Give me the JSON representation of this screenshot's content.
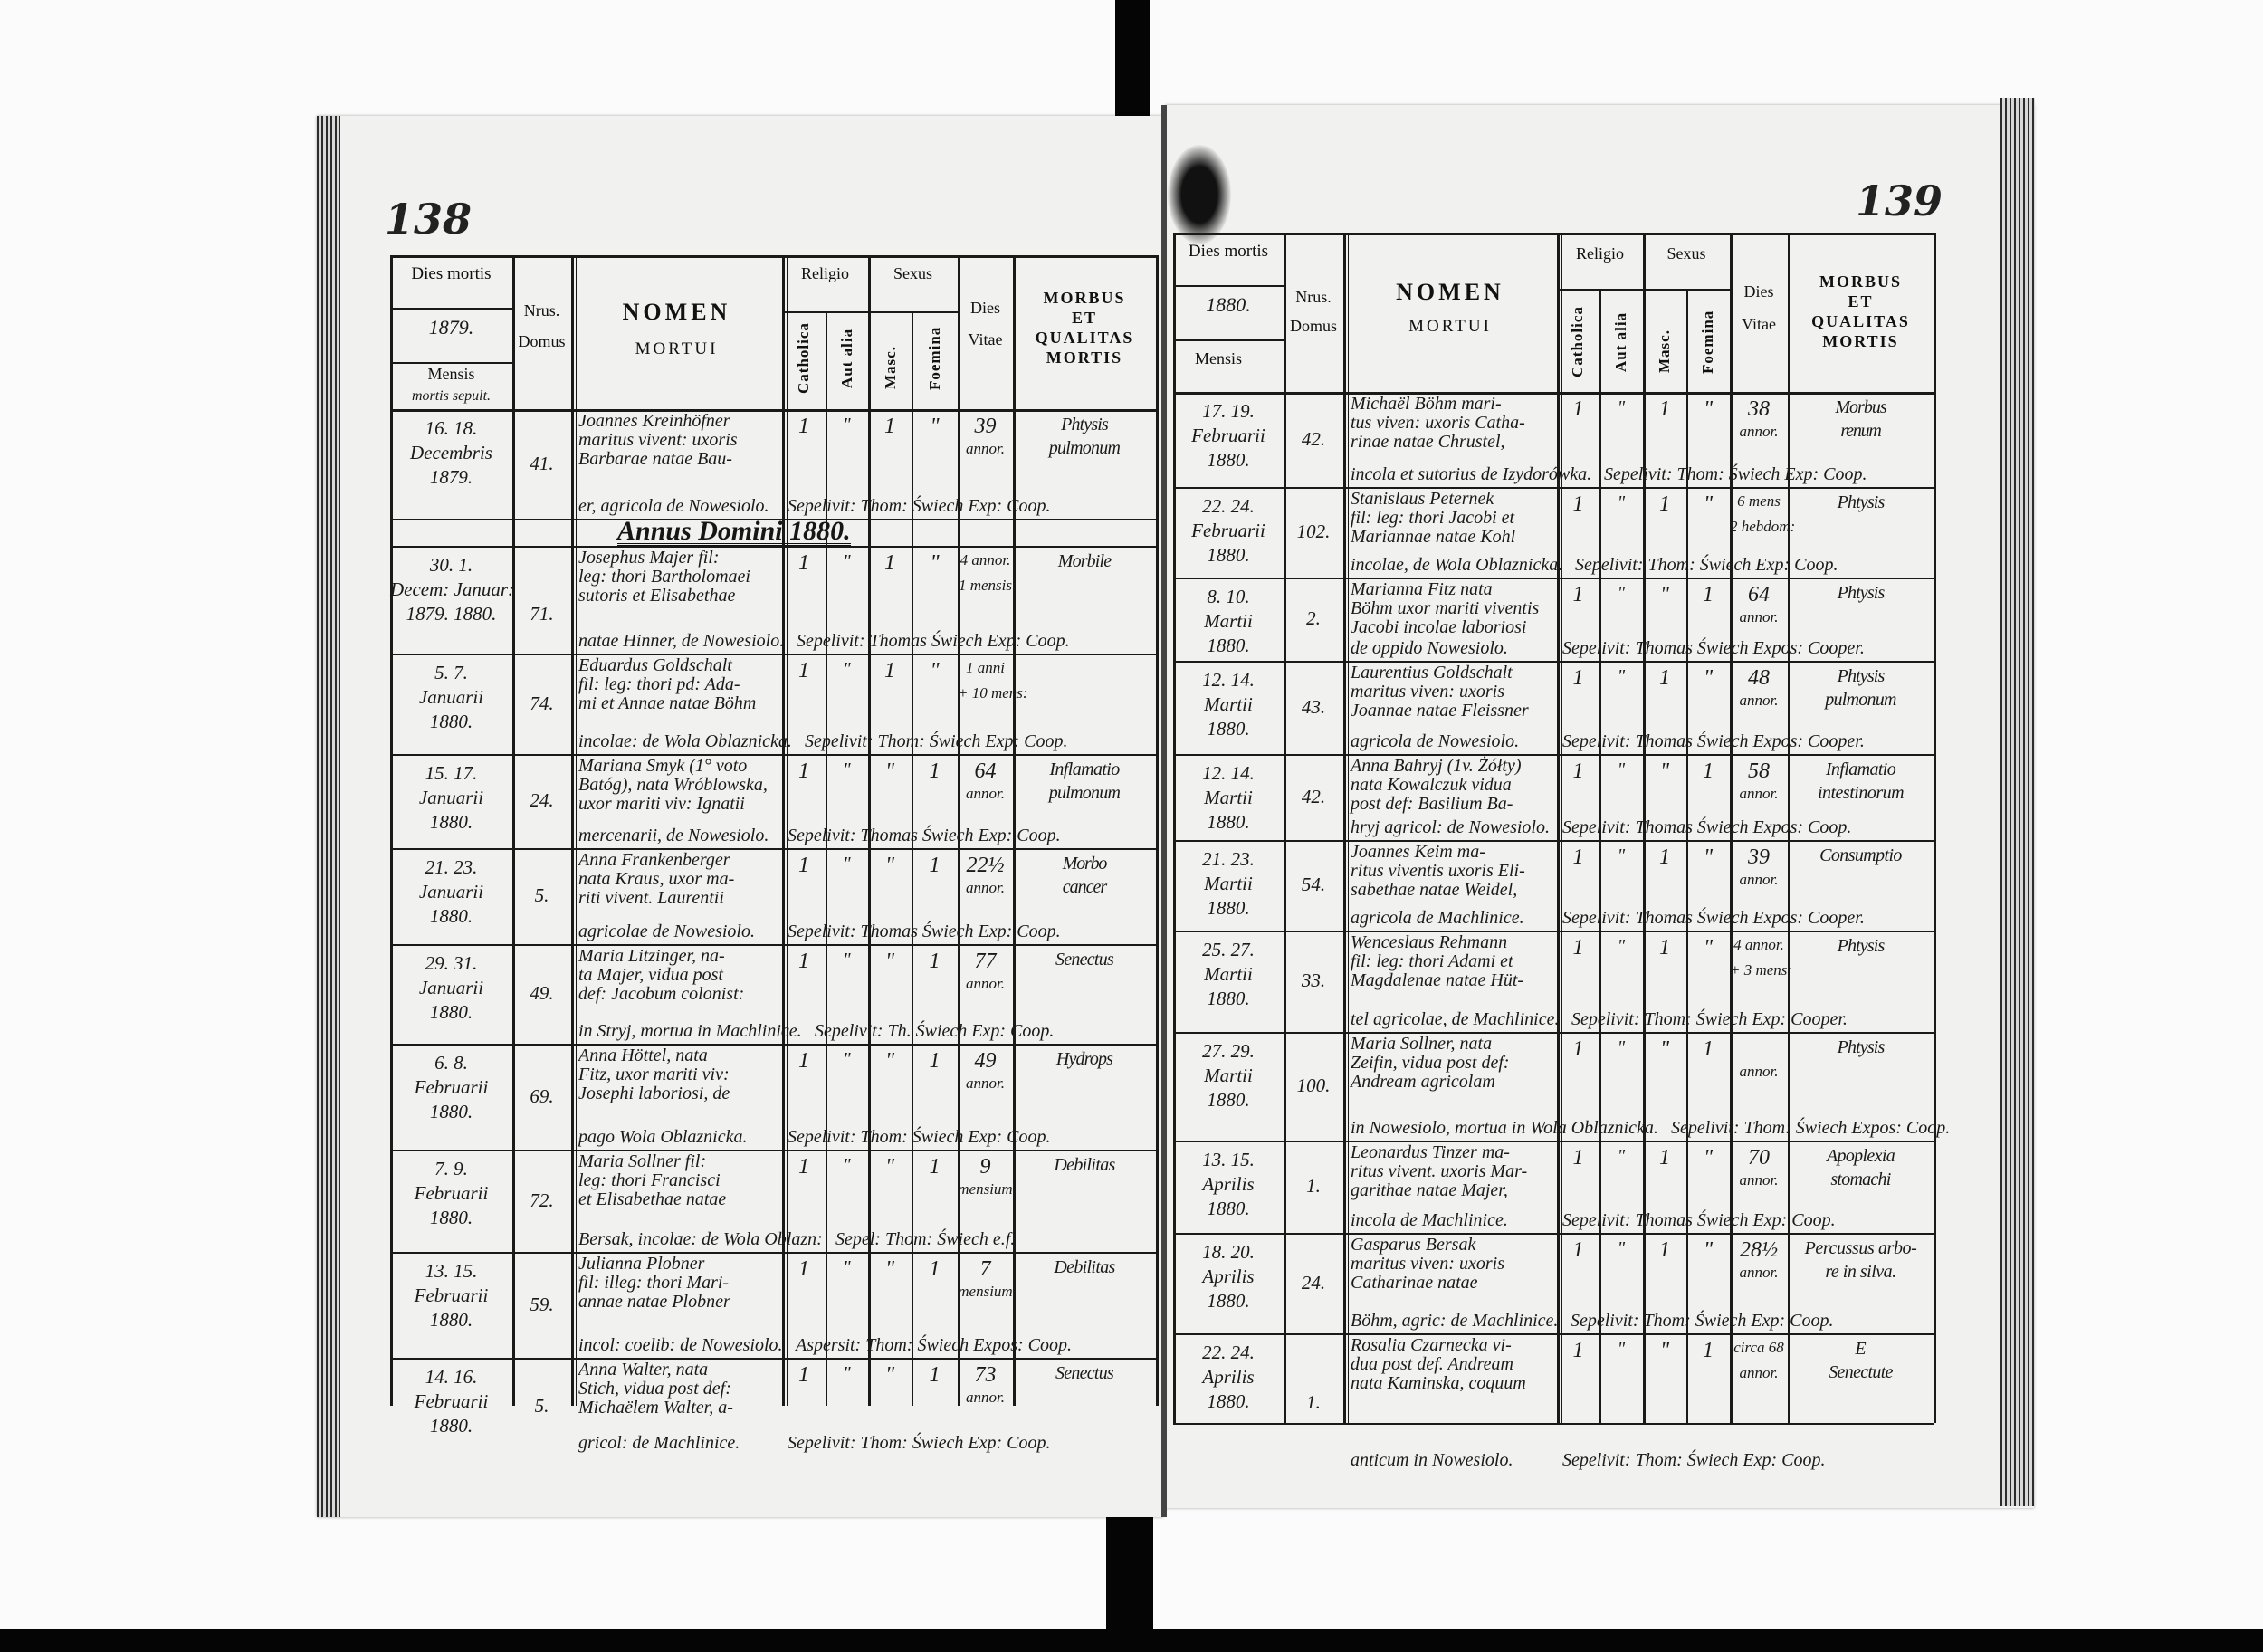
{
  "colors": {
    "ink": "#1a1a1a",
    "paper": "#f1f1ef",
    "scan_border": "#050505"
  },
  "left_page": {
    "page_number": "138",
    "header": {
      "dies_mortis": "Dies mortis",
      "year": "1879.",
      "mensis": "Mensis",
      "mensis_note": "mortis sepult.",
      "nrus": "Nrus.",
      "domus": "Domus",
      "nomen": "NOMEN",
      "mortui": "MORTUI",
      "religio": "Religio",
      "catholica": "Catholica",
      "aut_alia": "Aut alia",
      "sexus": "Sexus",
      "masc": "Masc.",
      "foemina": "Foemina",
      "dies": "Dies",
      "vitae": "Vitae",
      "morbus": [
        "MORBUS",
        "ET",
        "QUALITAS",
        "MORTIS"
      ]
    },
    "year_heading": "Annus Domini 1880.",
    "rows": [
      {
        "date": [
          "16.   18.",
          "Decembris",
          "1879."
        ],
        "domus": "41.",
        "nomen": [
          "Joannes Kreinhöfner",
          "maritus vivent: uxoris",
          "Barbarae natae Bau-",
          "er, agricola de Nowesiolo."
        ],
        "religio": [
          "1",
          "\""
        ],
        "sexus": [
          "1",
          "\""
        ],
        "age": [
          "39",
          "annor."
        ],
        "morbus": [
          "Phtysis",
          "pulmonum"
        ],
        "burial": "Sepelivit: Thom: Świech Exp: Coop."
      },
      {
        "date": [
          "30.     1.",
          "Decem: Januar:",
          "1879.  1880."
        ],
        "domus": "71.",
        "nomen": [
          "Josephus Majer fil:",
          "leg: thori Bartholomaei",
          "sutoris et Elisabethae",
          "natae Hinner, de Nowesiolo."
        ],
        "religio": [
          "1",
          "\""
        ],
        "sexus": [
          "1",
          "\""
        ],
        "age": [
          "4 annor.",
          "1 mensis"
        ],
        "morbus": [
          "Morbile"
        ],
        "burial": "Sepelivit: Thomas Świech Exp: Coop."
      },
      {
        "date": [
          "5.    7.",
          "Januarii",
          "1880."
        ],
        "domus": "74.",
        "nomen": [
          "Eduardus Goldschalt",
          "fil: leg: thori pd: Ada-",
          "mi et Annae natae Böhm",
          "incolae: de Wola Oblaznicka."
        ],
        "religio": [
          "1",
          "\""
        ],
        "sexus": [
          "1",
          "\""
        ],
        "age": [
          "1 anni",
          "+ 10 mens:"
        ],
        "morbus": [],
        "burial": "Sepelivit: Thom: Świech Exp: Coop."
      },
      {
        "date": [
          "15.   17.",
          "Januarii",
          "1880."
        ],
        "domus": "24.",
        "nomen": [
          "Mariana Smyk (1° voto",
          "Batóg), nata Wróblowska,",
          "uxor mariti viv: Ignatii",
          "mercenarii, de Nowesiolo."
        ],
        "religio": [
          "1",
          "\""
        ],
        "sexus": [
          "\"",
          "1"
        ],
        "age": [
          "64",
          "annor."
        ],
        "morbus": [
          "Inflamatio",
          "pulmonum"
        ],
        "burial": "Sepelivit: Thomas Świech Exp: Coop."
      },
      {
        "date": [
          "21.   23.",
          "Januarii",
          "1880."
        ],
        "domus": "5.",
        "nomen": [
          "Anna Frankenberger",
          "nata Kraus, uxor ma-",
          "riti vivent. Laurentii",
          "agricolae de Nowesiolo."
        ],
        "religio": [
          "1",
          "\""
        ],
        "sexus": [
          "\"",
          "1"
        ],
        "age": [
          "22½",
          "annor."
        ],
        "morbus": [
          "Morbo",
          "cancer"
        ],
        "burial": "Sepelivit: Thomas Świech Exp: Coop."
      },
      {
        "date": [
          "29.   31.",
          "Januarii",
          "1880."
        ],
        "domus": "49.",
        "nomen": [
          "Maria Litzinger, na-",
          "ta Majer, vidua post",
          "def: Jacobum colonist:",
          "in Stryj, mortua in Machlinice."
        ],
        "religio": [
          "1",
          "\""
        ],
        "sexus": [
          "\"",
          "1"
        ],
        "age": [
          "77",
          "annor."
        ],
        "morbus": [
          "Senectus"
        ],
        "burial": "Sepelivit: Th. Świech Exp: Coop."
      },
      {
        "date": [
          "6.    8.",
          "Februarii",
          "1880."
        ],
        "domus": "69.",
        "nomen": [
          "Anna Höttel, nata",
          "Fitz, uxor mariti viv:",
          "Josephi laboriosi, de",
          "pago Wola Oblaznicka."
        ],
        "religio": [
          "1",
          "\""
        ],
        "sexus": [
          "\"",
          "1"
        ],
        "age": [
          "49",
          "annor."
        ],
        "morbus": [
          "Hydrops"
        ],
        "burial": "Sepelivit: Thom: Świech Exp: Coop."
      },
      {
        "date": [
          "7.    9.",
          "Februarii",
          "1880."
        ],
        "domus": "72.",
        "nomen": [
          "Maria Sollner fil:",
          "leg: thori Francisci",
          "et Elisabethae natae",
          "Bersak, incolae: de Wola Oblazn:"
        ],
        "religio": [
          "1",
          "\""
        ],
        "sexus": [
          "\"",
          "1"
        ],
        "age": [
          "9",
          "mensium"
        ],
        "morbus": [
          "Debilitas"
        ],
        "burial": "Sepel: Thom: Świech e.f."
      },
      {
        "date": [
          "13.   15.",
          "Februarii",
          "1880."
        ],
        "domus": "59.",
        "nomen": [
          "Julianna Plobner",
          "fil: illeg: thori Mari-",
          "annae natae Plobner",
          "incol: coelib: de Nowesiolo."
        ],
        "religio": [
          "1",
          "\""
        ],
        "sexus": [
          "\"",
          "1"
        ],
        "age": [
          "7",
          "mensium"
        ],
        "morbus": [
          "Debilitas"
        ],
        "burial": "Aspersit: Thom: Świech Expos: Coop."
      },
      {
        "date": [
          "14.   16.",
          "Februarii",
          "1880."
        ],
        "domus": "5.",
        "nomen": [
          "Anna Walter, nata",
          "Stich, vidua post def:",
          "Michaëlem Walter, a-",
          "gricol: de Machlinice."
        ],
        "religio": [
          "1",
          "\""
        ],
        "sexus": [
          "\"",
          "1"
        ],
        "age": [
          "73",
          "annor."
        ],
        "morbus": [
          "Senectus"
        ],
        "burial": "Sepelivit: Thom: Świech Exp: Coop."
      }
    ]
  },
  "right_page": {
    "page_number": "139",
    "header": {
      "dies_mortis": "Dies mortis",
      "year": "1880.",
      "mensis": "Mensis",
      "nrus": "Nrus.",
      "domus": "Domus",
      "nomen": "NOMEN",
      "mortui": "MORTUI",
      "religio": "Religio",
      "catholica": "Catholica",
      "aut_alia": "Aut alia",
      "sexus": "Sexus",
      "masc": "Masc.",
      "foemina": "Foemina",
      "dies": "Dies",
      "vitae": "Vitae",
      "morbus": [
        "MORBUS",
        "ET",
        "QUALITAS",
        "MORTIS"
      ]
    },
    "rows": [
      {
        "date": [
          "17.   19.",
          "Februarii",
          "1880."
        ],
        "domus": "42.",
        "nomen": [
          "Michaël Böhm mari-",
          "tus viven: uxoris Catha-",
          "rinae natae Chrustel,",
          "incola et sutorius de Izydorówka."
        ],
        "religio": [
          "1",
          "\""
        ],
        "sexus": [
          "1",
          "\""
        ],
        "age": [
          "38",
          "annor."
        ],
        "morbus": [
          "Morbus",
          "renum"
        ],
        "burial": "Sepelivit: Thom: Świech Exp: Coop."
      },
      {
        "date": [
          "22.   24.",
          "Februarii",
          "1880."
        ],
        "domus": "102.",
        "nomen": [
          "Stanislaus Peternek",
          "fil: leg: thori Jacobi et",
          "Mariannae natae Kohl",
          "incolae, de Wola Oblaznicka."
        ],
        "religio": [
          "1",
          "\""
        ],
        "sexus": [
          "1",
          "\""
        ],
        "age": [
          "6 mens",
          "2 hebdom:"
        ],
        "morbus": [
          "Phtysis"
        ],
        "burial": "Sepelivit: Thom: Świech Exp: Coop."
      },
      {
        "date": [
          "8.    10.",
          "Martii",
          "1880."
        ],
        "domus": "2.",
        "nomen": [
          "Marianna Fitz nata",
          "Böhm uxor mariti viventis",
          "Jacobi incolae laboriosi",
          "de oppido Nowesiolo."
        ],
        "religio": [
          "1",
          "\""
        ],
        "sexus": [
          "\"",
          "1"
        ],
        "age": [
          "64",
          "annor."
        ],
        "morbus": [
          "Phtysis"
        ],
        "burial": "Sepelivit: Thomas Świech Expos: Cooper."
      },
      {
        "date": [
          "12.   14.",
          "Martii",
          "1880."
        ],
        "domus": "43.",
        "nomen": [
          "Laurentius Goldschalt",
          "maritus viven: uxoris",
          "Joannae natae Fleissner",
          "agricola de Nowesiolo."
        ],
        "religio": [
          "1",
          "\""
        ],
        "sexus": [
          "1",
          "\""
        ],
        "age": [
          "48",
          "annor."
        ],
        "morbus": [
          "Phtysis",
          "pulmonum"
        ],
        "burial": "Sepelivit: Thomas Świech Expos: Cooper."
      },
      {
        "date": [
          "12.   14.",
          "Martii",
          "1880."
        ],
        "domus": "42.",
        "nomen": [
          "Anna Bahryj (1v. Żółty)",
          "nata Kowalczuk vidua",
          "post def: Basilium Ba-",
          "hryj agricol: de Nowesiolo."
        ],
        "religio": [
          "1",
          "\""
        ],
        "sexus": [
          "\"",
          "1"
        ],
        "age": [
          "58",
          "annor."
        ],
        "morbus": [
          "Inflamatio",
          "intestinorum"
        ],
        "burial": "Sepelivit: Thomas Świech Expos: Coop."
      },
      {
        "date": [
          "21.   23.",
          "Martii",
          "1880."
        ],
        "domus": "54.",
        "nomen": [
          "Joannes Keim ma-",
          "ritus viventis uxoris Eli-",
          "sabethae natae Weidel,",
          "agricola de Machlinice."
        ],
        "religio": [
          "1",
          "\""
        ],
        "sexus": [
          "1",
          "\""
        ],
        "age": [
          "39",
          "annor."
        ],
        "morbus": [
          "Consumptio"
        ],
        "burial": "Sepelivit: Thomas Świech Expos: Cooper."
      },
      {
        "date": [
          "25.   27.",
          "Martii",
          "1880."
        ],
        "domus": "33.",
        "nomen": [
          "Wenceslaus Rehmann",
          "fil: leg: thori Adami et",
          "Magdalenae natae Hüt-",
          "tel agricolae, de Machlinice."
        ],
        "religio": [
          "1",
          "\""
        ],
        "sexus": [
          "1",
          "\""
        ],
        "age": [
          "4 annor.",
          "+ 3 mens:"
        ],
        "morbus": [
          "Phtysis"
        ],
        "burial": "Sepelivit: Thom: Świech Exp: Cooper."
      },
      {
        "date": [
          "27.   29.",
          "Martii",
          "1880."
        ],
        "domus": "100.",
        "nomen": [
          "Maria Sollner, nata",
          "Zeifin, vidua post def:",
          "Andream agricolam",
          "in Nowesiolo, mortua in Wola Oblaznicka."
        ],
        "religio": [
          "1",
          "\""
        ],
        "sexus": [
          "\"",
          "1"
        ],
        "age": [
          "",
          "annor."
        ],
        "morbus": [
          "Phtysis"
        ],
        "burial": "Sepelivit: Thom: Świech Expos: Coop."
      },
      {
        "date": [
          "13.   15.",
          "Aprilis",
          "1880."
        ],
        "domus": "1.",
        "nomen": [
          "Leonardus Tinzer ma-",
          "ritus vivent. uxoris Mar-",
          "garithae natae Majer,",
          "incola de Machlinice."
        ],
        "religio": [
          "1",
          "\""
        ],
        "sexus": [
          "1",
          "\""
        ],
        "age": [
          "70",
          "annor."
        ],
        "morbus": [
          "Apoplexia",
          "stomachi"
        ],
        "burial": "Sepelivit: Thomas Świech Exp: Coop."
      },
      {
        "date": [
          "18.   20.",
          "Aprilis",
          "1880."
        ],
        "domus": "24.",
        "nomen": [
          "Gasparus Bersak",
          "maritus viven: uxoris",
          "Catharinae natae",
          "Böhm, agric: de Machlinice."
        ],
        "religio": [
          "1",
          "\""
        ],
        "sexus": [
          "1",
          "\""
        ],
        "age": [
          "28½",
          "annor."
        ],
        "morbus": [
          "Percussus arbo-",
          "re in silva."
        ],
        "burial": "Sepelivit: Thom: Świech Exp: Coop."
      },
      {
        "date": [
          "22.   24.",
          "Aprilis",
          "1880."
        ],
        "domus": "1.",
        "nomen": [
          "Rosalia Czarnecka vi-",
          "dua post def. Andream",
          "nata Kaminska, coquum",
          "anticum in Nowesiolo."
        ],
        "religio": [
          "1",
          "\""
        ],
        "sexus": [
          "\"",
          "1"
        ],
        "age": [
          "circa 68",
          "annor."
        ],
        "morbus": [
          "E",
          "Senectute"
        ],
        "burial": "Sepelivit: Thom: Świech Exp: Coop."
      }
    ]
  }
}
